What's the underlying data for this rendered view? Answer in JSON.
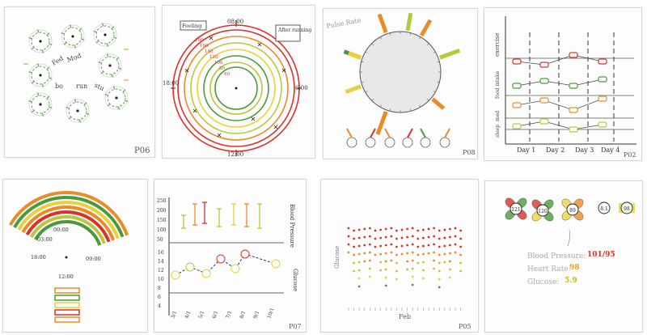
{
  "colors": {
    "red": "#d8322c",
    "orange": "#e88c2a",
    "yellow": "#e8d23c",
    "yellowgreen": "#b8c83a",
    "green": "#4a9a3a",
    "ink": "#333333"
  },
  "p06": {
    "labels": [
      "Fed",
      "Mod",
      "bo",
      "run",
      "stu"
    ],
    "page": "P06"
  },
  "clock": {
    "top": "08:00",
    "right": "6:00",
    "bottom": "12:00",
    "left": "18:00",
    "note_left": "Feeling",
    "note_right": "After running",
    "ring_values": [
      "180",
      "160",
      "140",
      "120",
      "100",
      "80",
      "60"
    ]
  },
  "pulse": {
    "title": "Pulse Rate",
    "page": "P08"
  },
  "dayplot": {
    "rows": [
      "exercise",
      "food intake",
      "med",
      "sleep"
    ],
    "days": [
      "Day 1",
      "Day 2",
      "Day 3",
      "Day 4"
    ],
    "page": "P02"
  },
  "arcs": {
    "times": [
      "00:00",
      "03:00",
      "18:00",
      "09:00",
      "12:00"
    ]
  },
  "bp": {
    "y_top": [
      "250",
      "200",
      "150",
      "100",
      "50"
    ],
    "y_bottom": [
      "16",
      "14",
      "12",
      "10",
      "8",
      "6",
      "4"
    ],
    "label_top": "Blood Pressure",
    "label_bottom": "Glucose",
    "x_labels": [
      "3/1",
      "4/1",
      "5/1",
      "6/1",
      "7/1",
      "8/1",
      "9/1",
      "10/1"
    ],
    "page": "P07"
  },
  "dots": {
    "ylabel": "Glucose",
    "xlabel": "Feb",
    "page": "P05"
  },
  "flowers": {
    "values": [
      "121",
      "120",
      "89",
      "8.1",
      "98"
    ],
    "bp_label": "Blood Pressure:",
    "bp_value": "101/95",
    "hr_label": "Heart Rate:",
    "hr_value": "98",
    "gl_label": "Glucose:",
    "gl_value": "5.9"
  }
}
